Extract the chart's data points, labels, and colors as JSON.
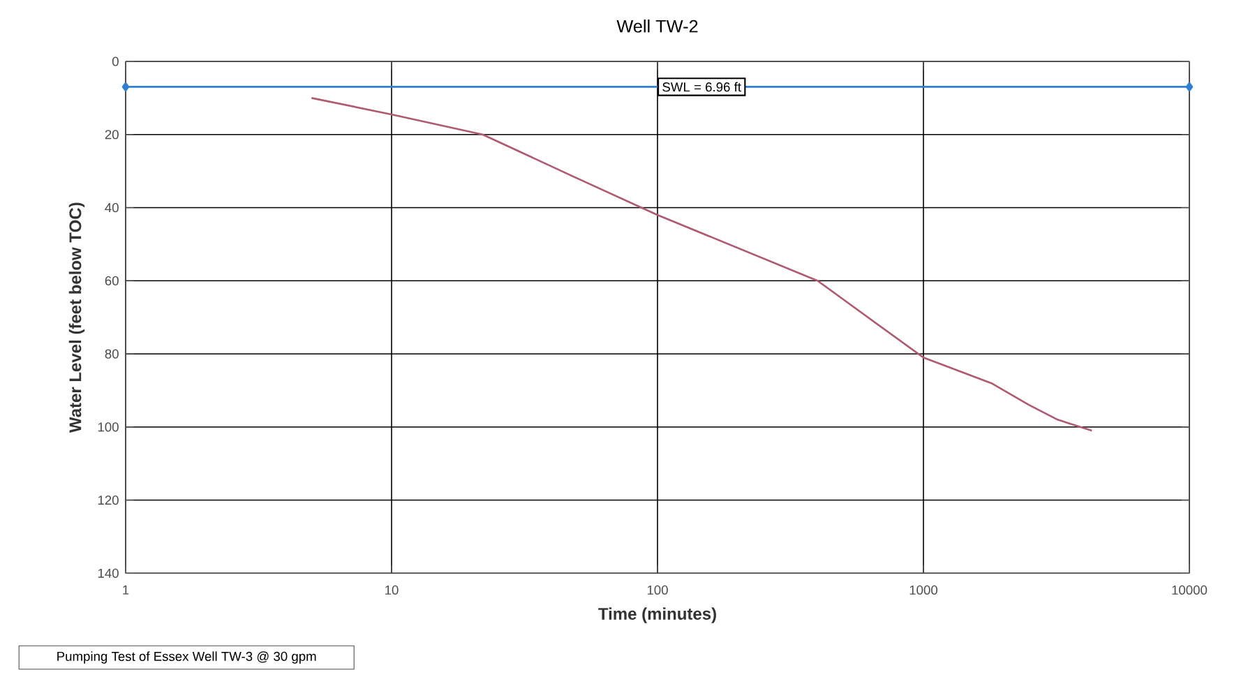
{
  "chart_data": {
    "type": "line",
    "title": "Well TW-2",
    "xlabel": "Time (minutes)",
    "ylabel": "Water Level (feet below TOC)",
    "log": "x",
    "xlim": [
      1,
      10000
    ],
    "xticks": [
      1,
      10,
      100,
      1000,
      10000
    ],
    "ylim": [
      140,
      0
    ],
    "yticks": [
      0,
      20,
      40,
      60,
      80,
      100,
      120,
      140
    ],
    "grid": true,
    "series": [
      {
        "x": [
          1,
          10000
        ],
        "values": [
          6.96,
          6.96
        ],
        "color": "#2f7fd6",
        "marker": "diamond"
      },
      {
        "x": [
          5,
          10,
          22,
          50,
          100,
          400,
          1000,
          1800,
          2500,
          3200,
          4300
        ],
        "values": [
          10,
          14.5,
          20,
          32,
          42,
          60,
          81,
          88,
          94,
          98,
          101
        ],
        "color": "#b05a70",
        "marker": "none"
      }
    ],
    "annotations": [
      {
        "text": "SWL = 6.96 ft",
        "x": 100,
        "y": 6.96
      },
      "Pumping Test of Essex Well TW-3 @ 30 gpm"
    ]
  }
}
